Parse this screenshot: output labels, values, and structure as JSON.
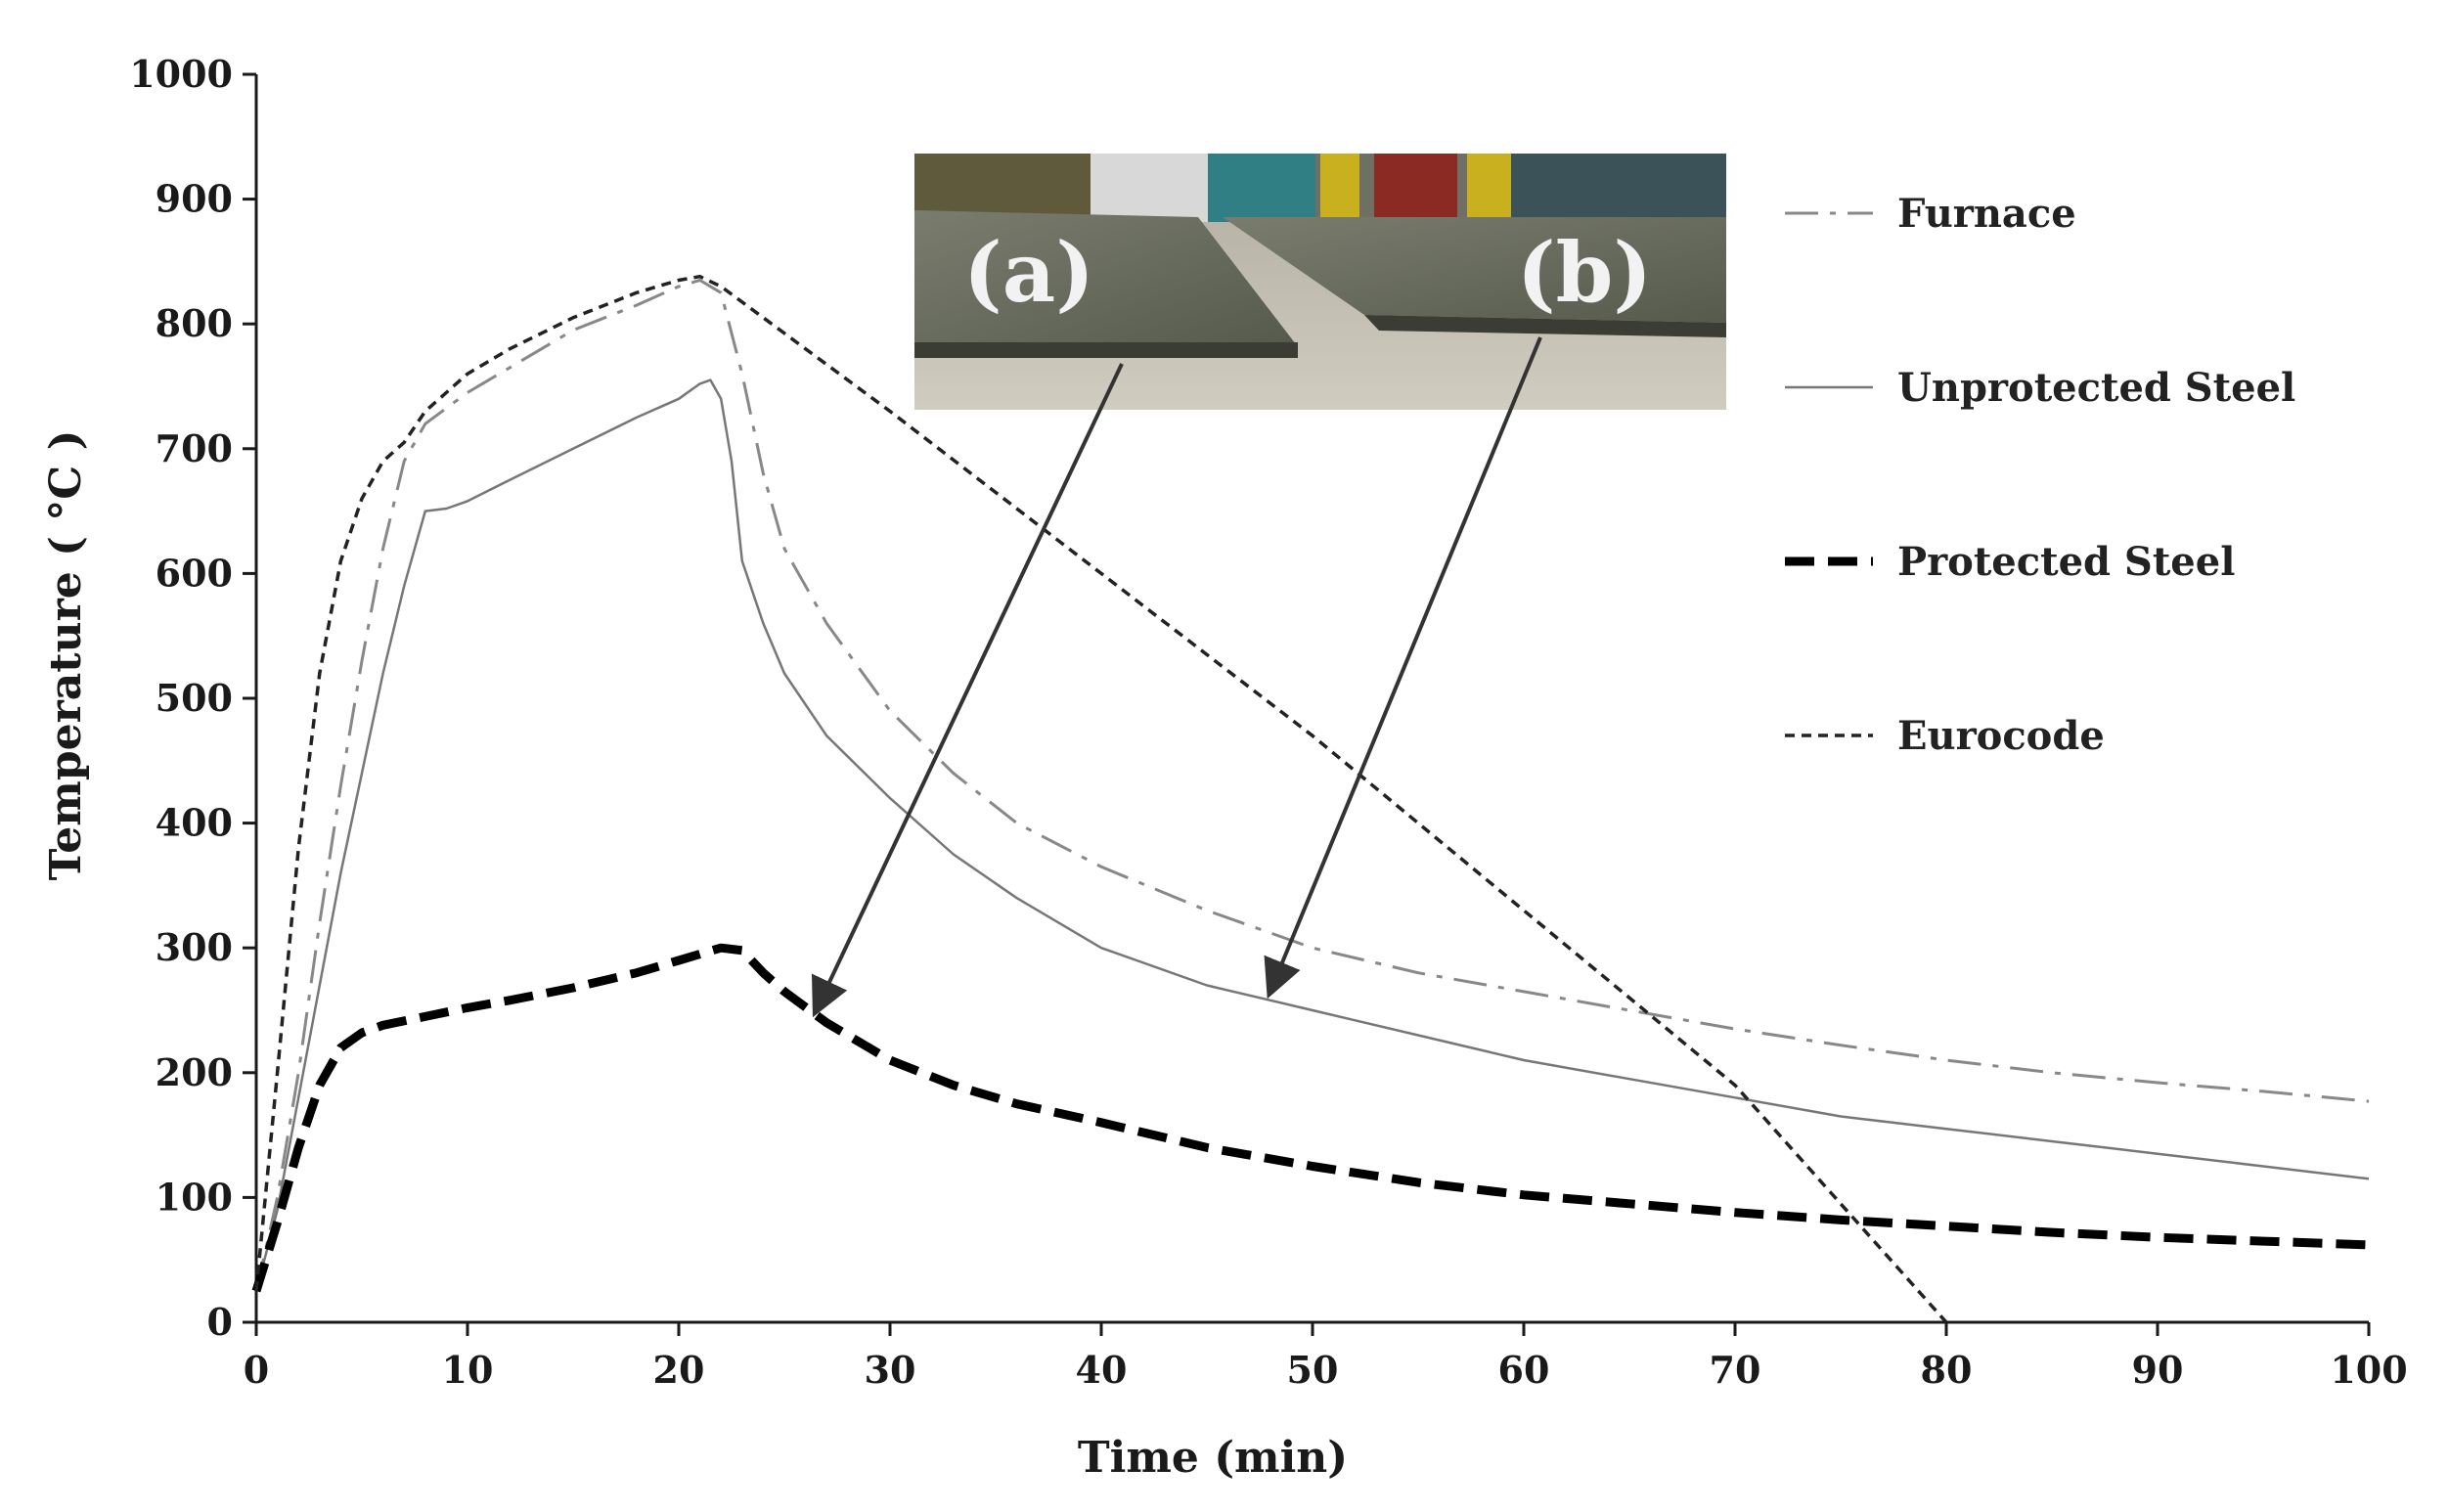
{
  "chart_data": {
    "type": "line",
    "title": "",
    "xlabel": "Time (min)",
    "ylabel": "Temperature ( °C )",
    "xlim": [
      0,
      100
    ],
    "ylim": [
      0,
      1000
    ],
    "xticks": [
      0,
      10,
      20,
      30,
      40,
      50,
      60,
      70,
      80,
      90,
      100
    ],
    "yticks": [
      0,
      100,
      200,
      300,
      400,
      500,
      600,
      700,
      800,
      900,
      1000
    ],
    "grid": false,
    "legend_position": "right",
    "series": [
      {
        "name": "Furnace",
        "style": "dash-dot",
        "color": "#888888",
        "x": [
          0,
          1,
          2,
          3,
          4,
          5,
          6,
          7,
          8,
          10,
          12,
          15,
          18,
          20,
          21,
          22,
          23,
          24,
          25,
          27,
          30,
          33,
          36,
          40,
          45,
          50,
          55,
          60,
          65,
          70,
          75,
          80,
          85,
          90,
          95,
          100
        ],
        "y": [
          25,
          100,
          200,
          320,
          430,
          530,
          620,
          690,
          720,
          745,
          765,
          795,
          815,
          830,
          835,
          825,
          760,
          680,
          620,
          560,
          490,
          440,
          400,
          365,
          330,
          300,
          280,
          265,
          250,
          235,
          222,
          210,
          200,
          192,
          185,
          177
        ]
      },
      {
        "name": "Unprotected Steel",
        "style": "solid",
        "color": "#777777",
        "x": [
          0,
          1,
          2,
          3,
          4,
          5,
          6,
          7,
          8,
          9,
          10,
          12,
          15,
          18,
          20,
          21,
          21.5,
          22,
          22.5,
          23,
          24,
          25,
          27,
          30,
          33,
          36,
          40,
          45,
          50,
          55,
          60,
          65,
          70,
          75,
          80,
          85,
          90,
          95,
          100
        ],
        "y": [
          25,
          90,
          180,
          270,
          360,
          440,
          520,
          590,
          650,
          652,
          658,
          675,
          700,
          725,
          740,
          752,
          755,
          740,
          690,
          610,
          560,
          520,
          470,
          420,
          375,
          340,
          300,
          270,
          250,
          230,
          210,
          195,
          180,
          165,
          155,
          145,
          135,
          125,
          115
        ]
      },
      {
        "name": "Protected Steel",
        "style": "dash-thick",
        "color": "#000000",
        "x": [
          0,
          1,
          2,
          3,
          4,
          5,
          6,
          8,
          10,
          12,
          15,
          18,
          20,
          21,
          22,
          23,
          24,
          25,
          27,
          30,
          33,
          36,
          40,
          45,
          50,
          55,
          60,
          65,
          70,
          75,
          80,
          85,
          90,
          95,
          100
        ],
        "y": [
          25,
          80,
          140,
          190,
          220,
          232,
          238,
          245,
          252,
          258,
          268,
          280,
          290,
          295,
          300,
          298,
          280,
          265,
          240,
          210,
          190,
          175,
          160,
          140,
          125,
          112,
          102,
          95,
          88,
          82,
          77,
          72,
          68,
          65,
          62
        ]
      },
      {
        "name": "Eurocode",
        "style": "dash-fine",
        "color": "#222222",
        "x": [
          0,
          1,
          2,
          3,
          4,
          5,
          6,
          7,
          8,
          10,
          12,
          15,
          18,
          20,
          21,
          22,
          30,
          40,
          50,
          60,
          70,
          80
        ],
        "y": [
          25,
          200,
          380,
          520,
          610,
          660,
          690,
          705,
          730,
          760,
          780,
          805,
          825,
          835,
          838,
          830,
          730,
          600,
          470,
          330,
          190,
          0
        ]
      }
    ],
    "annotations": [
      {
        "label": "(a)",
        "arrow_to": {
          "x": 26.5,
          "y": 250
        }
      },
      {
        "label": "(b)",
        "arrow_to": {
          "x": 48,
          "y": 265
        }
      }
    ]
  }
}
